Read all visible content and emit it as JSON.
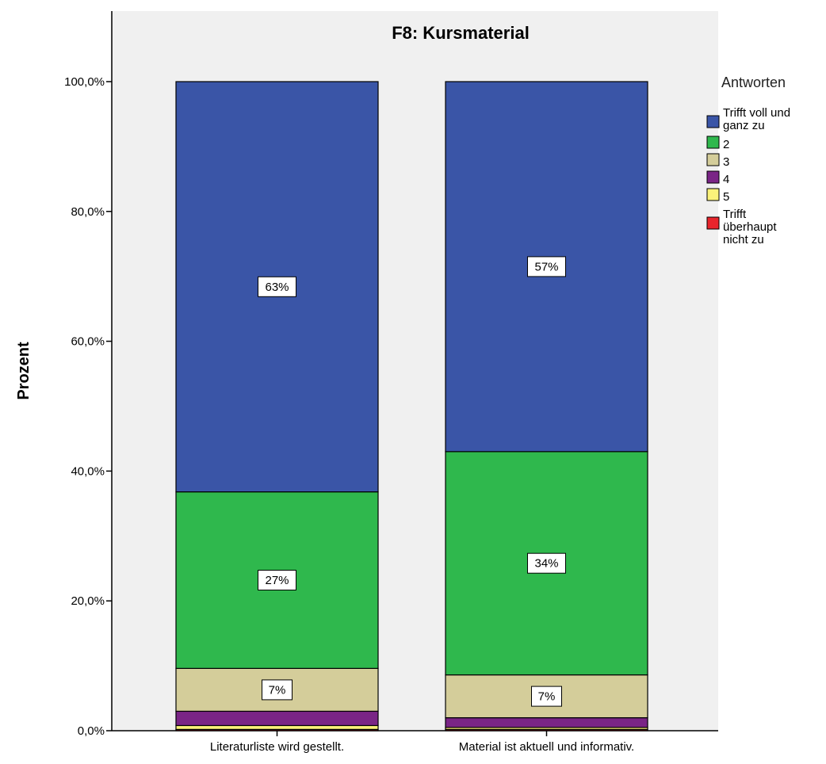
{
  "chart_data": {
    "type": "bar",
    "stacked": true,
    "title": "F8: Kursmaterial",
    "xlabel": "",
    "ylabel": "Prozent",
    "ylim": [
      0,
      100
    ],
    "y_ticks": [
      "0,0%",
      "20,0%",
      "40,0%",
      "60,0%",
      "80,0%",
      "100,0%"
    ],
    "grid": false,
    "legend_position": "right",
    "legend_title": "Antworten",
    "categories": [
      "Literaturliste wird gestellt.",
      "Material ist aktuell und informativ."
    ],
    "series": [
      {
        "name": "Trifft überhaupt nicht zu",
        "legend_lines": [
          "Trifft",
          "überhaupt",
          "nicht zu"
        ],
        "color": "#e8252c",
        "values": [
          0.2,
          0.2
        ]
      },
      {
        "name": "5",
        "legend_lines": [
          "5"
        ],
        "color": "#fbf27a",
        "values": [
          0.6,
          0.3
        ]
      },
      {
        "name": "4",
        "legend_lines": [
          "4"
        ],
        "color": "#7a2586",
        "values": [
          2.2,
          1.5
        ]
      },
      {
        "name": "3",
        "legend_lines": [
          "3"
        ],
        "color": "#d4cd9a",
        "values": [
          6.6,
          6.6
        ]
      },
      {
        "name": "2",
        "legend_lines": [
          "2"
        ],
        "color": "#2fb84d",
        "values": [
          27.2,
          34.4
        ]
      },
      {
        "name": "Trifft voll und ganz zu",
        "legend_lines": [
          "Trifft voll und",
          "ganz zu"
        ],
        "color": "#3a55a7",
        "values": [
          63.2,
          57.0
        ]
      }
    ],
    "data_labels": [
      {
        "category_index": 0,
        "series_index": 5,
        "text": "63%"
      },
      {
        "category_index": 0,
        "series_index": 4,
        "text": "27%"
      },
      {
        "category_index": 0,
        "series_index": 3,
        "text": "7%"
      },
      {
        "category_index": 1,
        "series_index": 5,
        "text": "57%"
      },
      {
        "category_index": 1,
        "series_index": 4,
        "text": "34%"
      },
      {
        "category_index": 1,
        "series_index": 3,
        "text": "7%"
      }
    ],
    "legend_order": [
      5,
      4,
      3,
      2,
      1,
      0
    ],
    "colors": {
      "plot_background": "#f0f0f0",
      "bar_outline": "#000000"
    }
  }
}
